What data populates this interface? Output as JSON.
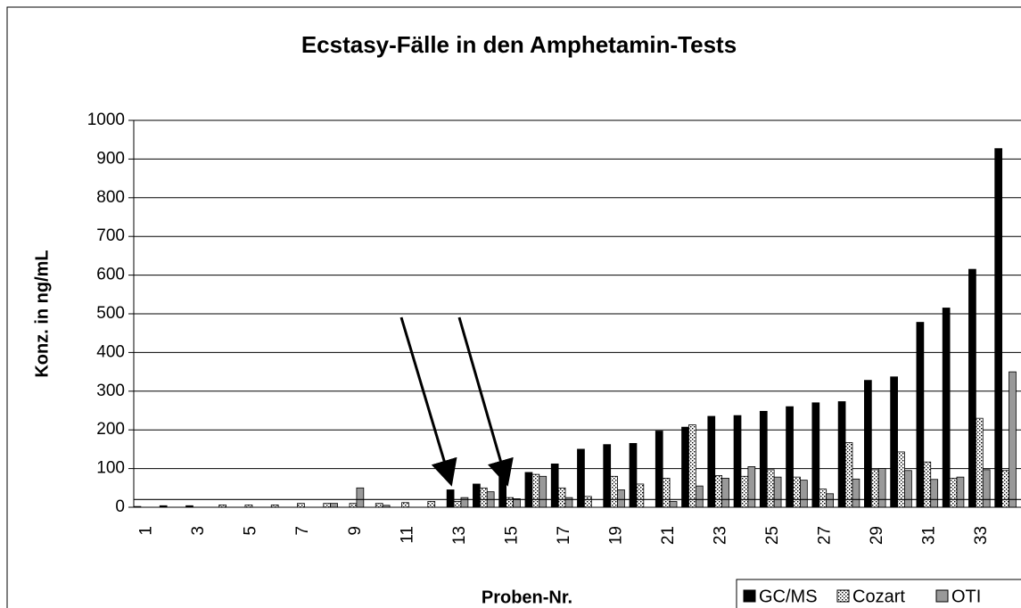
{
  "chart_data": {
    "type": "bar",
    "title": "Ecstasy-Fälle in den Amphetamin-Tests",
    "x_label": "Proben-Nr.",
    "y_label": "Konz. in ng/mL",
    "categories": [
      "1",
      null,
      "3",
      null,
      "5",
      null,
      "7",
      null,
      "9",
      null,
      "11",
      null,
      "13",
      null,
      "15",
      null,
      "17",
      null,
      "19",
      null,
      "21",
      null,
      "23",
      null,
      "25",
      null,
      "27",
      null,
      "29",
      null,
      "31",
      null,
      "33",
      null
    ],
    "series": [
      {
        "name": "GC/MS",
        "color": "#000000",
        "values": [
          2,
          4,
          4,
          0,
          0,
          0,
          0,
          0,
          0,
          0,
          0,
          0,
          45,
          60,
          95,
          90,
          112,
          150,
          162,
          165,
          197,
          207,
          235,
          237,
          248,
          260,
          270,
          273,
          328,
          337,
          478,
          515,
          615,
          927
        ]
      },
      {
        "name": "Cozart",
        "color": "#ffffff",
        "pattern": "dots",
        "values": [
          0,
          0,
          0,
          6,
          6,
          6,
          10,
          10,
          10,
          10,
          12,
          15,
          15,
          50,
          25,
          85,
          50,
          28,
          80,
          60,
          75,
          213,
          82,
          80,
          97,
          78,
          47,
          167,
          97,
          143,
          117,
          75,
          230,
          95
        ]
      },
      {
        "name": "OTI",
        "color": "#999999",
        "values": [
          0,
          0,
          0,
          0,
          0,
          0,
          0,
          10,
          50,
          5,
          0,
          0,
          25,
          40,
          22,
          80,
          25,
          0,
          45,
          0,
          15,
          55,
          75,
          105,
          78,
          70,
          35,
          73,
          100,
          95,
          72,
          78,
          97,
          350
        ]
      }
    ],
    "reference_line": 20,
    "ylim": [
      0,
      1000
    ],
    "yticks": [
      0,
      100,
      200,
      300,
      400,
      500,
      600,
      700,
      800,
      900,
      1000
    ],
    "grid": true,
    "legend": "bottom-right"
  }
}
